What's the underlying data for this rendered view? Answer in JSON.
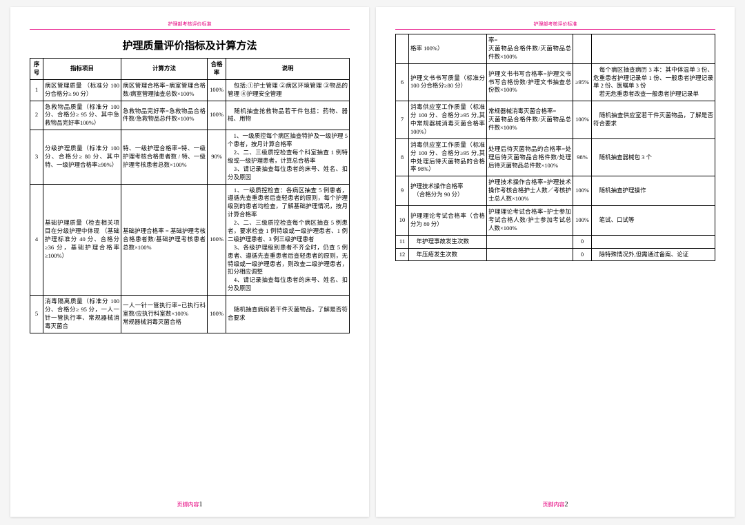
{
  "meta": {
    "header_text": "护理部考核评价标准",
    "title": "护理质量评价指标及计算方法",
    "footer_label": "页脚内容",
    "page1": "1",
    "page2": "2",
    "columns": {
      "seq": "序号",
      "item": "指标项目",
      "calc": "计算方法",
      "rate": "合格率",
      "desc": "说明"
    }
  },
  "rows": [
    {
      "seq": "1",
      "item": "病区管理质量 （标准分 100 分合格分≥ 90 分）",
      "calc": "病区管理合格率=病室管理合格数/病室管理抽查总数×100%",
      "rate": "100%",
      "desc": "　包括:①护士管理 ②病区环境管理 ③物品的管理 ④护理安全管理"
    },
    {
      "seq": "2",
      "item": "急救物品质量（标准分 100 分、合格分≥ 95 分、其中急救物品完好率100%）",
      "calc": "急救物品完好率=急救物品合格件数/急救物品总件数×100%",
      "rate": "100%",
      "desc": "　随机抽查抢救物品若干件包括：药物、器械、用物"
    },
    {
      "seq": "3",
      "item": "分级护理质量（标准分 100 分、合格分≥ 80 分、其中特、一级护理合格率≥90%）",
      "calc": "特、一级护理合格率=特、一级护理考核合格患者数 / 特、一级护理考核患者总数×100%",
      "rate": "90%",
      "desc": "　1、一级质控每个病区抽查特护及一级护理 5 个患者，按月计算合格率\n　2、二、三级质控检查每个科室抽查 1 例特级或一级护理患者，计算总合格率\n　3、请记录抽查每位患者的床号、姓名、扣分及原因"
    },
    {
      "seq": "4",
      "item": "基础护理质量（检查相关项目在分级护理中体现 （基础护理标准分 40 分、合格分≥36 分，基础护理合格率≥100%）",
      "calc": "基础护理合格率 = 基础护理考核合格患者数/基础护理考核患者总数×100%",
      "rate": "100%",
      "desc": "　1、一级质控检查：各病区抽查 5 例患者，遵循先查重患者后查轻患者的原则，每个护理级别的患者均检查，了解基础护理情况，按月计算合格率\n　2、二、三级质控检查每个病区抽查 5 例患者，要求检查 1 例特级或一级护理患者、1 例二级护理患者、3 例三级护理患者\n　3、各级护理级别患者不齐全时，仍查 5 例患者、遵循先查重患者后查轻患者的原则，无特级或一级护理患者，则改查二级护理患者，扣分相应调整\n　4、请记录抽查每位患者的床号、姓名、扣分及原因"
    },
    {
      "seq": "5",
      "item": "消毒隔离质量（标准分 100 分、合格分≥ 95 分，一人一针一管执行率、常规器械消毒灭菌合",
      "calc": "一人一针一管执行率=已执行科室数/应执行科室数×100%\n常规器械消毒灭菌合格",
      "rate": "100%",
      "desc": "　随机抽查病房若干件灭菌物品，了解是否符合要求"
    }
  ],
  "rows2": [
    {
      "seq": "",
      "item": "格率 100%）",
      "calc": "率=\n灭菌物品合格件数/灭菌物品总件数×100%",
      "rate": "",
      "desc": ""
    },
    {
      "seq": "6",
      "item": "护理文书书写质量（标准分 100 分合格分≥80 分）",
      "calc": "护理文书书写合格率=护理文书书写合格份数/护理文书抽查总份数×100%",
      "rate": "≥95%",
      "desc": "　每个病区抽查病历 3 本：其中体温单 3 份、危重患者护理记录单 1 份、一般患者护理记录单 2 份、医嘱单 3 份\n　若无危重患者改查一般患者护理记录单"
    },
    {
      "seq": "7",
      "item": "消毒供应室工作质量（标准分 100 分、合格分≥95 分,其中常规器械消毒灭菌合格率 100%）",
      "calc": "常规器械消毒灭菌合格率=\n灭菌物品合格件数/灭菌物品总件数×100%",
      "rate": "100%",
      "desc": "　随机抽查供应室若干件灭菌物品，了解是否符合要求"
    },
    {
      "seq": "8",
      "item": "消毒供应室工作质量（标准分 100 分、合格分≥95 分,其中处理后待灭菌物品的合格率 98%）",
      "calc": "处理后待灭菌物品的合格率=处理后待灭菌物品合格件数/处理后待灭菌物品总件数×100%",
      "rate": "98%",
      "desc": "　随机抽查器械包 3 个"
    },
    {
      "seq": "9",
      "item": "护理技术操作合格率\n　（合格分为 90 分）",
      "calc": "护理技术操作合格率=护理技术操作考核合格护士人数／考核护士总人数×100%",
      "rate": "100%",
      "desc": "　随机抽查护理操作"
    },
    {
      "seq": "10",
      "item": "护理理论考试合格率（合格分为 80 分）",
      "calc": "护理理论考试合格率=护士参加考试合格人数/护士参加考试总人数×100%",
      "rate": "100%",
      "desc": "　笔试、口试等"
    },
    {
      "seq": "11",
      "item": "　年护理事故发生次数",
      "calc": "",
      "rate": "0",
      "desc": ""
    },
    {
      "seq": "12",
      "item": "　年压疮发生次数",
      "calc": "",
      "rate": "0",
      "desc": "　除特殊情况外,但需通过备案、论证"
    }
  ]
}
